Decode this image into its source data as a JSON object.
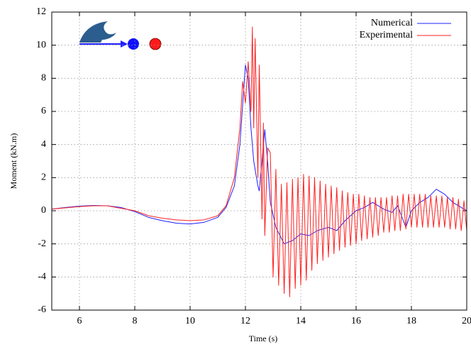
{
  "chart_data": {
    "type": "line",
    "xlabel": "Time (s)",
    "ylabel": "Moment (kN.m)",
    "xlim": [
      5,
      20
    ],
    "xticks": [
      6,
      8,
      10,
      12,
      14,
      16,
      18,
      20
    ],
    "ylim": [
      -6,
      12
    ],
    "yticks": [
      -6,
      -4,
      -2,
      0,
      2,
      4,
      6,
      8,
      10,
      12
    ],
    "grid": true,
    "legend": "upper right",
    "series": [
      {
        "name": "Numerical",
        "color": "#1f1fff",
        "x": [
          5,
          5.5,
          6,
          6.5,
          7,
          7.5,
          8,
          8.5,
          9,
          9.5,
          10,
          10.5,
          11,
          11.3,
          11.6,
          11.8,
          12,
          12.1,
          12.2,
          12.3,
          12.45,
          12.5,
          12.6,
          12.7,
          12.8,
          12.9,
          13.1,
          13.4,
          13.7,
          14,
          14.3,
          14.6,
          15,
          15.3,
          15.6,
          16,
          16.3,
          16.6,
          17,
          17.3,
          17.5,
          17.8,
          18,
          18.3,
          18.6,
          18.9,
          19.2,
          19.5,
          19.8,
          20
        ],
        "values": [
          0.1,
          0.2,
          0.28,
          0.32,
          0.3,
          0.2,
          -0.05,
          -0.4,
          -0.6,
          -0.75,
          -0.8,
          -0.7,
          -0.4,
          0.2,
          1.5,
          4,
          8.8,
          8,
          5,
          3,
          1.5,
          1.2,
          3,
          4.9,
          3,
          0.5,
          -1,
          -2,
          -1.8,
          -1.4,
          -1.5,
          -1.2,
          -1,
          -1.2,
          -0.6,
          0,
          0.2,
          0.5,
          0.1,
          -0.1,
          0.3,
          -1,
          0,
          0.5,
          0.8,
          1.3,
          1,
          0.5,
          0.2,
          0
        ]
      },
      {
        "name": "Experimental",
        "color": "#ff2020",
        "x": [
          5,
          6,
          6.5,
          7,
          7.5,
          8,
          8.5,
          9,
          9.5,
          10,
          10.5,
          11,
          11.3,
          11.6,
          11.8,
          11.9,
          12.0,
          12.1,
          12.2,
          12.25,
          12.3,
          12.35,
          12.45,
          12.5,
          12.6,
          12.65,
          12.7,
          12.8,
          12.9,
          13.0,
          13.1,
          13.2,
          13.3,
          13.4,
          13.5,
          13.6,
          13.7,
          13.8,
          13.9,
          14.0,
          14.1,
          14.2,
          14.3,
          14.4,
          14.5,
          14.6,
          14.7,
          14.8,
          14.9,
          15.0,
          15.1,
          15.2,
          15.3,
          15.4,
          15.5,
          15.6,
          15.7,
          15.8,
          15.9,
          16.0,
          16.1,
          16.2,
          16.3,
          16.4,
          16.5,
          16.6,
          16.7,
          16.8,
          16.9,
          17.0,
          17.1,
          17.2,
          17.3,
          17.4,
          17.5,
          17.6,
          17.7,
          17.8,
          17.9,
          18.0,
          18.1,
          18.2,
          18.3,
          18.4,
          18.5,
          18.6,
          18.7,
          18.8,
          18.9,
          19.0,
          19.1,
          19.2,
          19.3,
          19.4,
          19.5,
          19.6,
          19.7,
          19.8,
          19.9,
          20.0
        ],
        "values": [
          0.1,
          0.25,
          0.3,
          0.3,
          0.15,
          0,
          -0.3,
          -0.45,
          -0.55,
          -0.6,
          -0.55,
          -0.3,
          0.3,
          2,
          5,
          7.8,
          6.5,
          9,
          6,
          11.1,
          5,
          10.4,
          2,
          8.8,
          -0.5,
          5.3,
          -1.5,
          3.8,
          3.5,
          -4.0,
          2.5,
          -4.5,
          1.6,
          -5.0,
          1.7,
          -5.2,
          1.9,
          -4.7,
          2.0,
          -4.5,
          2.2,
          -4.2,
          2.1,
          -3.6,
          2.0,
          -3.2,
          1.8,
          -3.0,
          1.6,
          -2.8,
          1.5,
          -2.6,
          1.4,
          -2.4,
          1.2,
          -2.2,
          1.1,
          -2.1,
          1.0,
          -2.0,
          1.0,
          -1.8,
          0.9,
          -1.7,
          0.8,
          -1.6,
          0.8,
          -1.5,
          0.8,
          -1.3,
          0.8,
          -1.3,
          0.9,
          -1.2,
          0.9,
          -1.2,
          1.0,
          -1.1,
          1.0,
          -1.0,
          1.0,
          -1.0,
          1.0,
          -1.0,
          1.0,
          -1.0,
          0.9,
          -1.0,
          0.9,
          -1.0,
          0.9,
          -1.0,
          0.8,
          -1.1,
          0.8,
          -1.1,
          0.7,
          -1.2,
          0.6,
          -1.2
        ]
      }
    ]
  }
}
